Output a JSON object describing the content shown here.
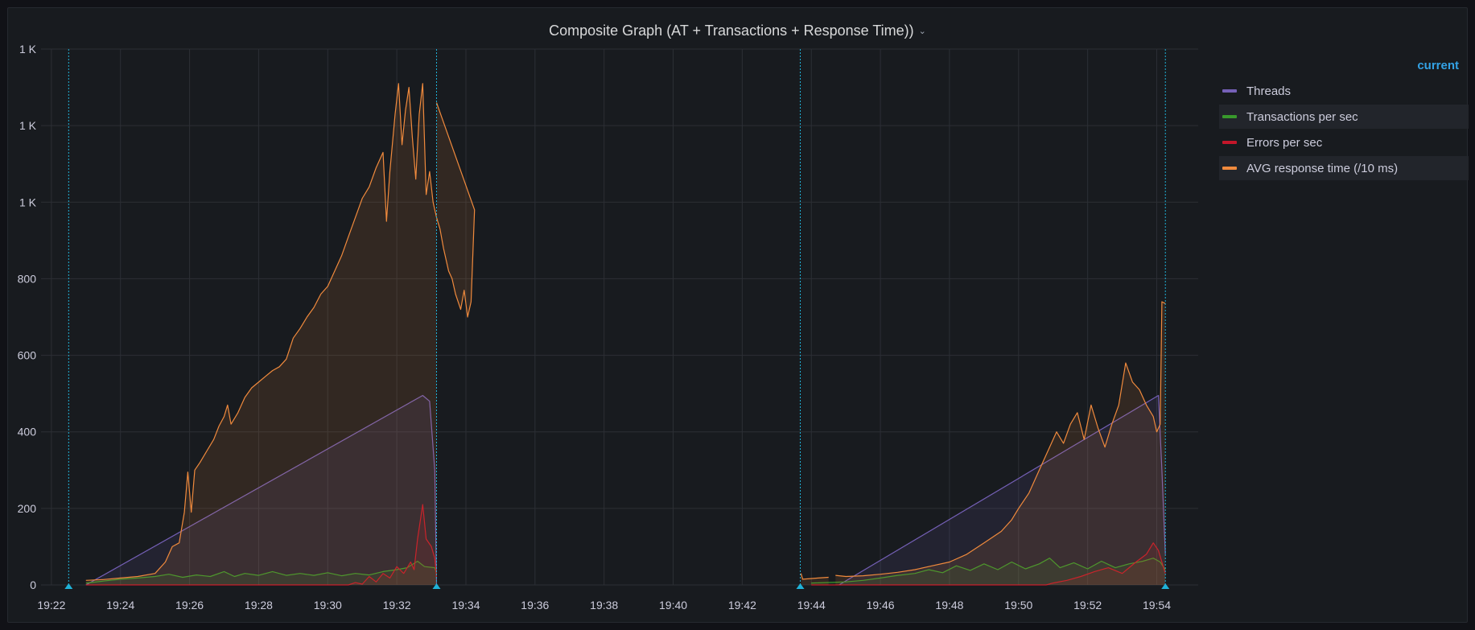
{
  "panel": {
    "title": "Composite Graph (AT + Transactions + Response Time))",
    "menu_icon": "chevron-down-icon"
  },
  "legend": {
    "header": "current",
    "items": [
      {
        "label": "Threads",
        "color": "#7560b7"
      },
      {
        "label": "Transactions per sec",
        "color": "#38992c"
      },
      {
        "label": "Errors per sec",
        "color": "#c4162a"
      },
      {
        "label": "AVG response time (/10 ms)",
        "color": "#f08a3d"
      }
    ]
  },
  "chart_data": {
    "type": "line",
    "x_unit": "minutes after 19:22",
    "xlim": [
      -0.3,
      33.2
    ],
    "ylim": [
      0,
      1400
    ],
    "y_ticks": [
      {
        "value": 0,
        "label": "0"
      },
      {
        "value": 200,
        "label": "200"
      },
      {
        "value": 400,
        "label": "400"
      },
      {
        "value": 600,
        "label": "600"
      },
      {
        "value": 800,
        "label": "800"
      },
      {
        "value": 1000,
        "label": "1 K"
      },
      {
        "value": 1200,
        "label": "1 K"
      },
      {
        "value": 1400,
        "label": "1 K"
      }
    ],
    "x_ticks": [
      "19:22",
      "19:24",
      "19:26",
      "19:28",
      "19:30",
      "19:32",
      "19:34",
      "19:36",
      "19:38",
      "19:40",
      "19:42",
      "19:44",
      "19:46",
      "19:48",
      "19:50",
      "19:52",
      "19:54"
    ],
    "annotations_x": [
      0.5,
      11.15,
      21.68,
      32.25
    ],
    "series": [
      {
        "name": "Threads",
        "color": "#7560b7",
        "segments": [
          [
            [
              1.0,
              0
            ],
            [
              10.75,
              495
            ],
            [
              10.95,
              480
            ],
            [
              11.1,
              300
            ],
            [
              11.15,
              0
            ]
          ],
          [
            [
              22.8,
              0
            ],
            [
              32.05,
              495
            ],
            [
              32.15,
              300
            ],
            [
              32.25,
              80
            ]
          ]
        ]
      },
      {
        "name": "Transactions per sec",
        "color": "#38992c",
        "segments": [
          [
            [
              1.0,
              5
            ],
            [
              1.5,
              10
            ],
            [
              2.0,
              15
            ],
            [
              2.5,
              18
            ],
            [
              3.0,
              22
            ],
            [
              3.4,
              28
            ],
            [
              3.8,
              20
            ],
            [
              4.2,
              26
            ],
            [
              4.6,
              22
            ],
            [
              5.0,
              35
            ],
            [
              5.3,
              22
            ],
            [
              5.6,
              30
            ],
            [
              6.0,
              25
            ],
            [
              6.4,
              35
            ],
            [
              6.8,
              25
            ],
            [
              7.2,
              30
            ],
            [
              7.6,
              25
            ],
            [
              8.0,
              32
            ],
            [
              8.4,
              24
            ],
            [
              8.8,
              30
            ],
            [
              9.2,
              26
            ],
            [
              9.6,
              35
            ],
            [
              10.0,
              40
            ],
            [
              10.3,
              45
            ],
            [
              10.6,
              62
            ],
            [
              10.8,
              48
            ],
            [
              11.1,
              45
            ],
            [
              11.15,
              30
            ]
          ],
          [
            [
              22.0,
              5
            ],
            [
              23.0,
              8
            ],
            [
              23.5,
              12
            ],
            [
              24.0,
              18
            ],
            [
              24.5,
              25
            ],
            [
              25.0,
              30
            ],
            [
              25.4,
              40
            ],
            [
              25.8,
              32
            ],
            [
              26.2,
              50
            ],
            [
              26.6,
              38
            ],
            [
              27.0,
              55
            ],
            [
              27.4,
              40
            ],
            [
              27.8,
              60
            ],
            [
              28.2,
              42
            ],
            [
              28.6,
              55
            ],
            [
              28.9,
              70
            ],
            [
              29.2,
              45
            ],
            [
              29.6,
              58
            ],
            [
              30.0,
              42
            ],
            [
              30.4,
              62
            ],
            [
              30.8,
              45
            ],
            [
              31.2,
              55
            ],
            [
              31.6,
              62
            ],
            [
              31.9,
              70
            ],
            [
              32.1,
              60
            ],
            [
              32.25,
              40
            ]
          ]
        ]
      },
      {
        "name": "Errors per sec",
        "color": "#c4162a",
        "segments": [
          [
            [
              1.0,
              0
            ],
            [
              8.6,
              0
            ],
            [
              8.8,
              6
            ],
            [
              9.0,
              2
            ],
            [
              9.2,
              22
            ],
            [
              9.4,
              8
            ],
            [
              9.6,
              30
            ],
            [
              9.8,
              18
            ],
            [
              10.0,
              48
            ],
            [
              10.2,
              30
            ],
            [
              10.4,
              60
            ],
            [
              10.5,
              40
            ],
            [
              10.6,
              120
            ],
            [
              10.75,
              210
            ],
            [
              10.85,
              120
            ],
            [
              11.0,
              100
            ],
            [
              11.1,
              70
            ],
            [
              11.15,
              20
            ]
          ],
          [
            [
              22.0,
              0
            ],
            [
              28.8,
              0
            ],
            [
              29.0,
              5
            ],
            [
              29.4,
              12
            ],
            [
              29.8,
              22
            ],
            [
              30.2,
              35
            ],
            [
              30.6,
              45
            ],
            [
              31.0,
              30
            ],
            [
              31.4,
              60
            ],
            [
              31.7,
              80
            ],
            [
              31.9,
              110
            ],
            [
              32.05,
              90
            ],
            [
              32.15,
              60
            ],
            [
              32.25,
              30
            ]
          ]
        ]
      },
      {
        "name": "AVG response time (/10 ms)",
        "color": "#f08a3d",
        "segments": [
          [
            [
              1.0,
              12
            ],
            [
              1.5,
              14
            ],
            [
              2.0,
              18
            ],
            [
              2.5,
              22
            ],
            [
              3.0,
              30
            ],
            [
              3.3,
              60
            ],
            [
              3.5,
              100
            ],
            [
              3.7,
              110
            ],
            [
              3.85,
              190
            ],
            [
              3.95,
              295
            ],
            [
              4.05,
              190
            ],
            [
              4.15,
              300
            ],
            [
              4.3,
              320
            ],
            [
              4.5,
              350
            ],
            [
              4.7,
              380
            ],
            [
              4.85,
              415
            ],
            [
              5.0,
              440
            ],
            [
              5.1,
              470
            ],
            [
              5.2,
              420
            ],
            [
              5.4,
              450
            ],
            [
              5.6,
              490
            ],
            [
              5.8,
              515
            ],
            [
              6.0,
              530
            ],
            [
              6.2,
              545
            ],
            [
              6.4,
              560
            ],
            [
              6.6,
              570
            ],
            [
              6.8,
              590
            ],
            [
              7.0,
              645
            ],
            [
              7.2,
              670
            ],
            [
              7.4,
              700
            ],
            [
              7.6,
              725
            ],
            [
              7.8,
              760
            ],
            [
              8.0,
              780
            ],
            [
              8.2,
              820
            ],
            [
              8.4,
              860
            ],
            [
              8.6,
              910
            ],
            [
              8.8,
              960
            ],
            [
              9.0,
              1010
            ],
            [
              9.2,
              1040
            ],
            [
              9.4,
              1090
            ],
            [
              9.6,
              1130
            ],
            [
              9.7,
              950
            ],
            [
              9.8,
              1080
            ],
            [
              9.95,
              1230
            ],
            [
              10.05,
              1310
            ],
            [
              10.15,
              1150
            ],
            [
              10.25,
              1240
            ],
            [
              10.35,
              1300
            ],
            [
              10.45,
              1170
            ],
            [
              10.55,
              1060
            ],
            [
              10.65,
              1230
            ],
            [
              10.75,
              1310
            ],
            [
              10.85,
              1020
            ],
            [
              10.95,
              1080
            ],
            [
              11.05,
              1000
            ],
            [
              11.15,
              960
            ],
            [
              11.25,
              930
            ],
            [
              11.35,
              880
            ],
            [
              11.5,
              820
            ],
            [
              11.6,
              800
            ],
            [
              11.7,
              760
            ],
            [
              11.85,
              720
            ],
            [
              11.95,
              770
            ],
            [
              12.05,
              700
            ],
            [
              12.15,
              740
            ],
            [
              12.25,
              980
            ],
            [
              11.15,
              1260
            ]
          ],
          [
            [
              21.7,
              30
            ],
            [
              21.75,
              15
            ],
            [
              22.2,
              18
            ],
            [
              22.5,
              20
            ]
          ],
          [
            [
              22.7,
              25
            ],
            [
              23.0,
              22
            ],
            [
              23.5,
              24
            ],
            [
              24.0,
              28
            ],
            [
              24.5,
              33
            ],
            [
              25.0,
              40
            ],
            [
              25.5,
              50
            ],
            [
              26.0,
              60
            ],
            [
              26.5,
              80
            ],
            [
              27.0,
              110
            ],
            [
              27.5,
              140
            ],
            [
              27.8,
              170
            ],
            [
              28.0,
              200
            ],
            [
              28.3,
              240
            ],
            [
              28.6,
              300
            ],
            [
              28.9,
              360
            ],
            [
              29.1,
              400
            ],
            [
              29.3,
              370
            ],
            [
              29.5,
              420
            ],
            [
              29.7,
              450
            ],
            [
              29.9,
              380
            ],
            [
              30.1,
              470
            ],
            [
              30.3,
              410
            ],
            [
              30.5,
              360
            ],
            [
              30.7,
              420
            ],
            [
              30.9,
              470
            ],
            [
              31.1,
              580
            ],
            [
              31.3,
              530
            ],
            [
              31.5,
              510
            ],
            [
              31.7,
              470
            ],
            [
              31.9,
              440
            ],
            [
              32.0,
              400
            ],
            [
              32.1,
              420
            ],
            [
              32.15,
              740
            ],
            [
              32.25,
              735
            ]
          ]
        ]
      }
    ]
  }
}
